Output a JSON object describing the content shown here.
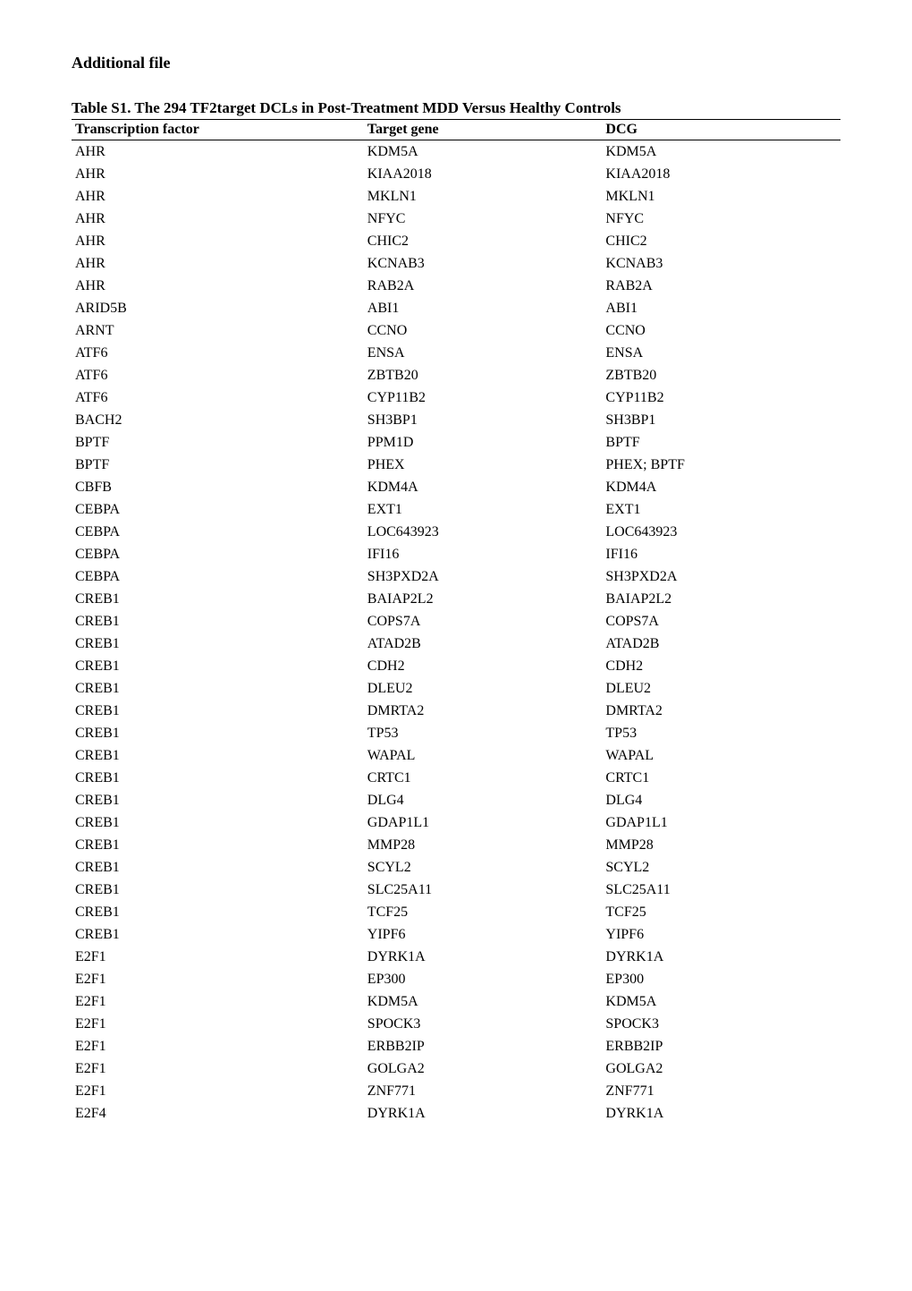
{
  "heading": "Additional file",
  "table_caption": "Table S1. The 294 TF2target DCLs in Post-Treatment MDD Versus Healthy Controls",
  "columns": [
    "Transcription factor",
    "Target gene",
    "DCG"
  ],
  "rows": [
    [
      "AHR",
      "KDM5A",
      "KDM5A"
    ],
    [
      "AHR",
      "KIAA2018",
      "KIAA2018"
    ],
    [
      "AHR",
      "MKLN1",
      "MKLN1"
    ],
    [
      "AHR",
      "NFYC",
      "NFYC"
    ],
    [
      "AHR",
      "CHIC2",
      "CHIC2"
    ],
    [
      "AHR",
      "KCNAB3",
      "KCNAB3"
    ],
    [
      "AHR",
      "RAB2A",
      "RAB2A"
    ],
    [
      "ARID5B",
      "ABI1",
      "ABI1"
    ],
    [
      "ARNT",
      "CCNO",
      "CCNO"
    ],
    [
      "ATF6",
      "ENSA",
      "ENSA"
    ],
    [
      "ATF6",
      "ZBTB20",
      "ZBTB20"
    ],
    [
      "ATF6",
      "CYP11B2",
      "CYP11B2"
    ],
    [
      "BACH2",
      "SH3BP1",
      "SH3BP1"
    ],
    [
      "BPTF",
      "PPM1D",
      "BPTF"
    ],
    [
      "BPTF",
      "PHEX",
      "PHEX; BPTF"
    ],
    [
      "CBFB",
      "KDM4A",
      "KDM4A"
    ],
    [
      "CEBPA",
      "EXT1",
      "EXT1"
    ],
    [
      "CEBPA",
      "LOC643923",
      "LOC643923"
    ],
    [
      "CEBPA",
      "IFI16",
      "IFI16"
    ],
    [
      "CEBPA",
      "SH3PXD2A",
      "SH3PXD2A"
    ],
    [
      "CREB1",
      "BAIAP2L2",
      "BAIAP2L2"
    ],
    [
      "CREB1",
      "COPS7A",
      "COPS7A"
    ],
    [
      "CREB1",
      "ATAD2B",
      "ATAD2B"
    ],
    [
      "CREB1",
      "CDH2",
      "CDH2"
    ],
    [
      "CREB1",
      "DLEU2",
      "DLEU2"
    ],
    [
      "CREB1",
      "DMRTA2",
      "DMRTA2"
    ],
    [
      "CREB1",
      "TP53",
      "TP53"
    ],
    [
      "CREB1",
      "WAPAL",
      "WAPAL"
    ],
    [
      "CREB1",
      "CRTC1",
      "CRTC1"
    ],
    [
      "CREB1",
      "DLG4",
      "DLG4"
    ],
    [
      "CREB1",
      "GDAP1L1",
      "GDAP1L1"
    ],
    [
      "CREB1",
      "MMP28",
      "MMP28"
    ],
    [
      "CREB1",
      "SCYL2",
      "SCYL2"
    ],
    [
      "CREB1",
      "SLC25A11",
      "SLC25A11"
    ],
    [
      "CREB1",
      "TCF25",
      "TCF25"
    ],
    [
      "CREB1",
      "YIPF6",
      "YIPF6"
    ],
    [
      "E2F1",
      "DYRK1A",
      "DYRK1A"
    ],
    [
      "E2F1",
      "EP300",
      "EP300"
    ],
    [
      "E2F1",
      "KDM5A",
      "KDM5A"
    ],
    [
      "E2F1",
      "SPOCK3",
      "SPOCK3"
    ],
    [
      "E2F1",
      "ERBB2IP",
      "ERBB2IP"
    ],
    [
      "E2F1",
      "GOLGA2",
      "GOLGA2"
    ],
    [
      "E2F1",
      "ZNF771",
      "ZNF771"
    ],
    [
      "E2F4",
      "DYRK1A",
      "DYRK1A"
    ]
  ],
  "styling": {
    "background_color": "#ffffff",
    "text_color": "#000000",
    "font_family": "Times New Roman",
    "heading_fontsize": 18,
    "caption_fontsize": 17,
    "body_fontsize": 16,
    "border_color": "#000000",
    "column_widths_pct": [
      38,
      31,
      31
    ]
  }
}
